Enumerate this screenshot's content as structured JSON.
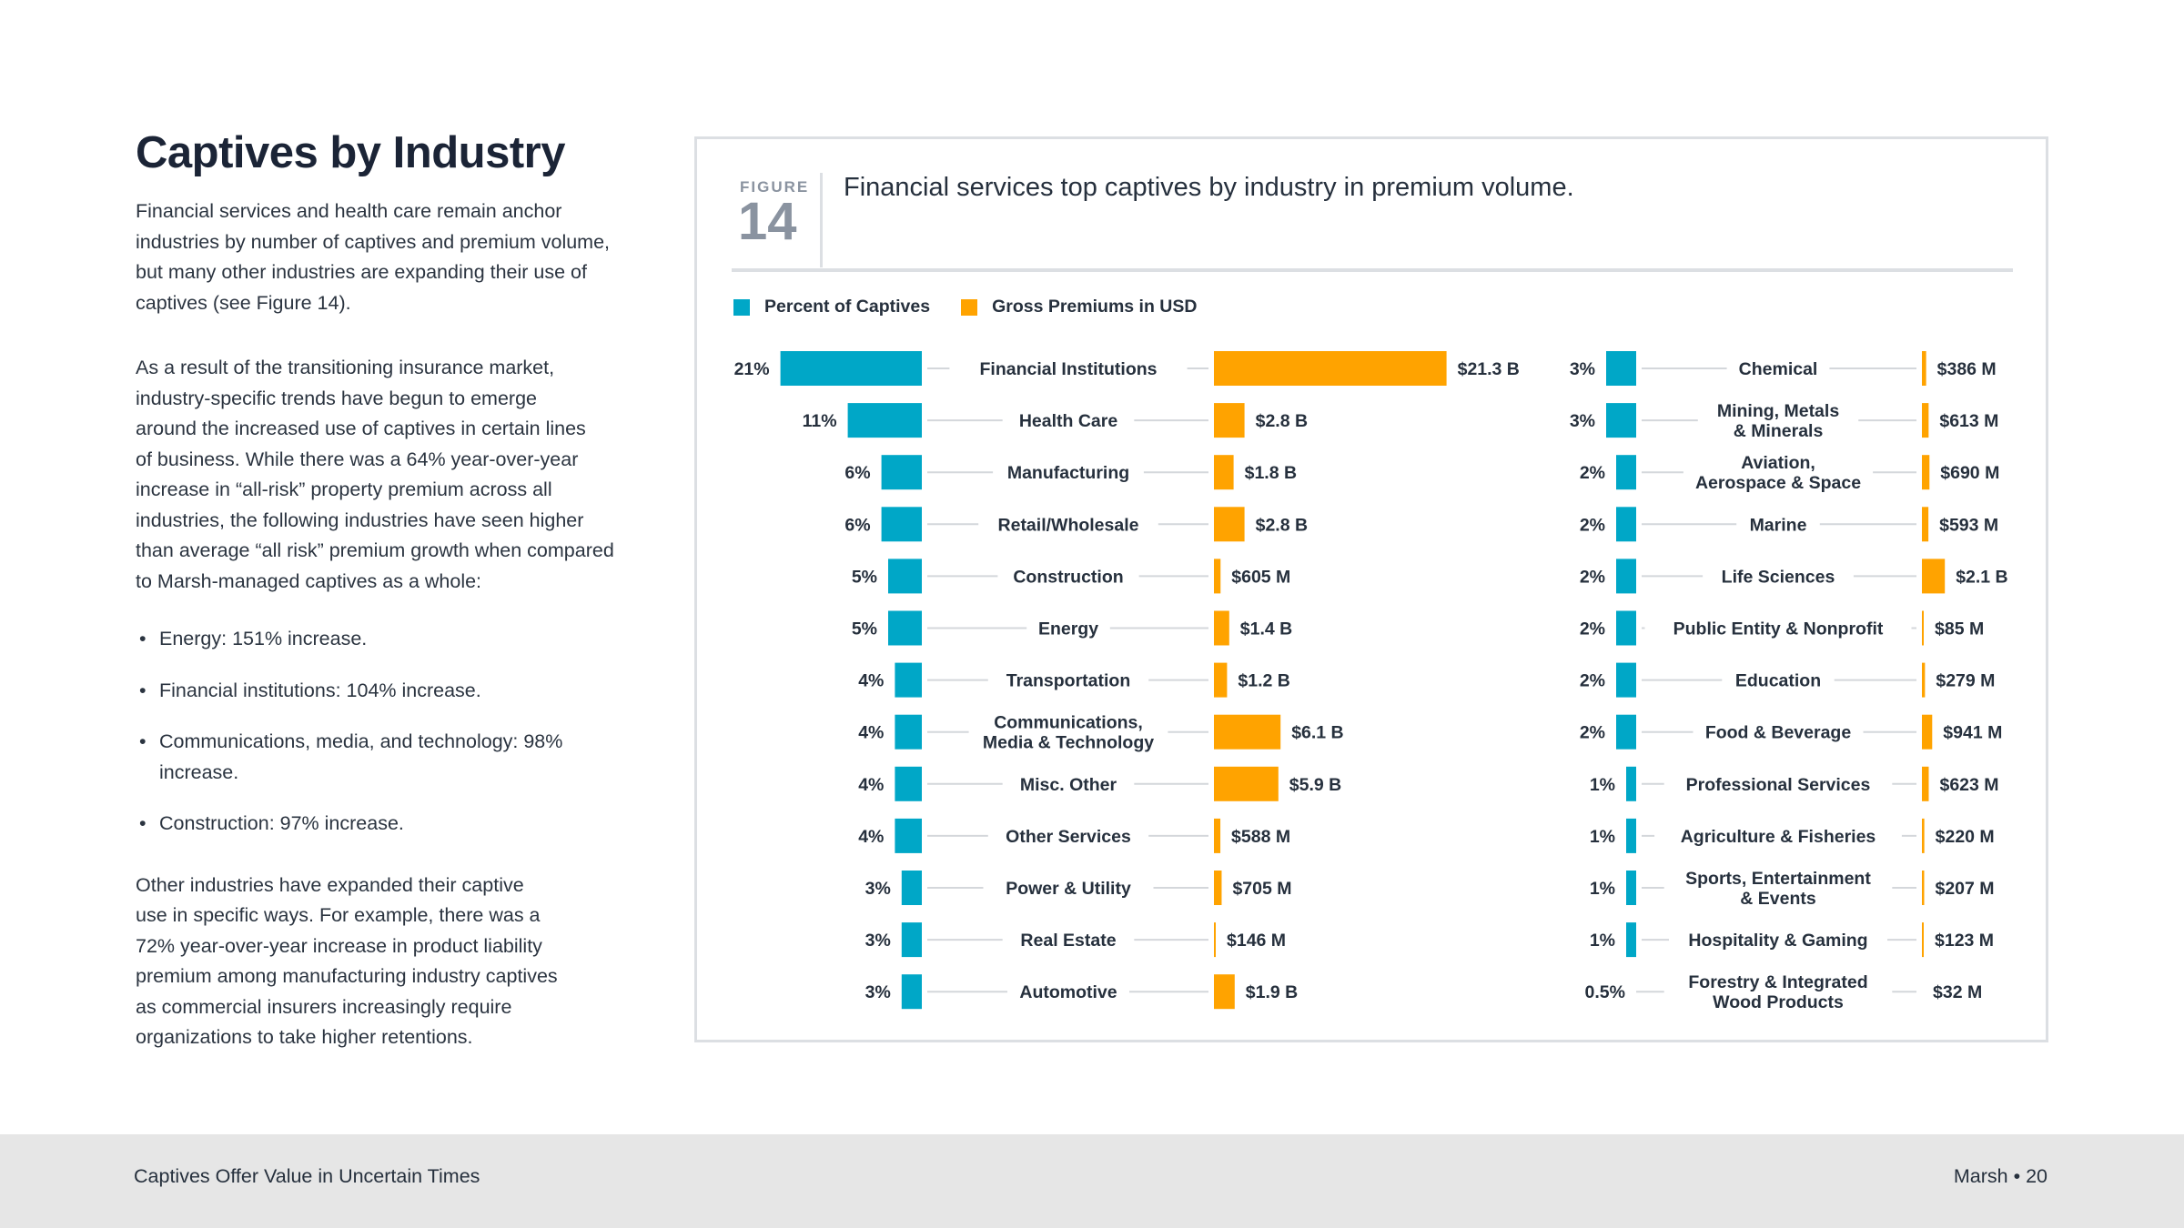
{
  "left": {
    "title": "Captives by Industry",
    "intro_lines": [
      "Financial services and health care remain anchor",
      "industries by number of captives and premium volume,",
      "but many other industries are expanding their use of",
      "captives (see Figure 14)."
    ],
    "para2_lines": [
      "As a result of the transitioning insurance market,",
      "industry-specific trends have begun to emerge",
      "around the increased use of captives in certain lines",
      "of business. While there was a 64% year-over-year",
      "increase in “all-risk” property premium across all",
      "industries, the following industries have seen higher",
      "than average “all risk” premium growth when compared",
      "to Marsh-managed captives as a whole:"
    ],
    "bullets": [
      [
        "Energy: 151% increase."
      ],
      [
        "Financial institutions: 104% increase."
      ],
      [
        "Communications, media, and technology: 98%",
        "increase."
      ],
      [
        "Construction: 97% increase."
      ]
    ],
    "para3_lines": [
      "Other industries have expanded their captive",
      "use in specific ways. For example, there was a",
      "72% year-over-year increase in product liability",
      "premium among manufacturing industry captives",
      "as commercial insurers increasingly require",
      "organizations to take higher retentions."
    ]
  },
  "figure": {
    "label": "FIGURE",
    "number": "14",
    "title": "Financial services top captives by industry in premium volume."
  },
  "legend": {
    "percent_label": "Percent of Captives",
    "premium_label": "Gross Premiums in USD"
  },
  "colors": {
    "percent": "#00a7c7",
    "premium": "#ffa300",
    "connector": "#d4d7db",
    "text": "#26303d"
  },
  "chart_data": {
    "type": "bar",
    "title": "Financial services top captives by industry in premium volume.",
    "series": [
      {
        "name": "Percent of Captives",
        "unit": "%"
      },
      {
        "name": "Gross Premiums in USD",
        "unit": "USD billions"
      }
    ],
    "columns": [
      {
        "rows": [
          {
            "lines": [
              "Financial Institutions"
            ],
            "pct": 21,
            "pct_label": "21%",
            "premium_b": 21.3,
            "premium_label": "$21.3 B"
          },
          {
            "lines": [
              "Health Care"
            ],
            "pct": 11,
            "pct_label": "11%",
            "premium_b": 2.8,
            "premium_label": "$2.8 B"
          },
          {
            "lines": [
              "Manufacturing"
            ],
            "pct": 6,
            "pct_label": "6%",
            "premium_b": 1.8,
            "premium_label": "$1.8 B"
          },
          {
            "lines": [
              "Retail/Wholesale"
            ],
            "pct": 6,
            "pct_label": "6%",
            "premium_b": 2.8,
            "premium_label": "$2.8 B"
          },
          {
            "lines": [
              "Construction"
            ],
            "pct": 5,
            "pct_label": "5%",
            "premium_b": 0.605,
            "premium_label": "$605 M"
          },
          {
            "lines": [
              "Energy"
            ],
            "pct": 5,
            "pct_label": "5%",
            "premium_b": 1.4,
            "premium_label": "$1.4 B"
          },
          {
            "lines": [
              "Transportation"
            ],
            "pct": 4,
            "pct_label": "4%",
            "premium_b": 1.2,
            "premium_label": "$1.2 B"
          },
          {
            "lines": [
              "Communications,",
              "Media & Technology"
            ],
            "pct": 4,
            "pct_label": "4%",
            "premium_b": 6.1,
            "premium_label": "$6.1 B"
          },
          {
            "lines": [
              "Misc. Other"
            ],
            "pct": 4,
            "pct_label": "4%",
            "premium_b": 5.9,
            "premium_label": "$5.9 B"
          },
          {
            "lines": [
              "Other Services"
            ],
            "pct": 4,
            "pct_label": "4%",
            "premium_b": 0.588,
            "premium_label": "$588 M"
          },
          {
            "lines": [
              "Power & Utility"
            ],
            "pct": 3,
            "pct_label": "3%",
            "premium_b": 0.705,
            "premium_label": "$705 M"
          },
          {
            "lines": [
              "Real Estate"
            ],
            "pct": 3,
            "pct_label": "3%",
            "premium_b": 0.146,
            "premium_label": "$146 M"
          },
          {
            "lines": [
              "Automotive"
            ],
            "pct": 3,
            "pct_label": "3%",
            "premium_b": 1.9,
            "premium_label": "$1.9 B"
          }
        ]
      },
      {
        "rows": [
          {
            "lines": [
              "Chemical"
            ],
            "pct": 3,
            "pct_label": "3%",
            "premium_b": 0.386,
            "premium_label": "$386 M"
          },
          {
            "lines": [
              "Mining, Metals",
              "& Minerals"
            ],
            "pct": 3,
            "pct_label": "3%",
            "premium_b": 0.613,
            "premium_label": "$613 M"
          },
          {
            "lines": [
              "Aviation,",
              "Aerospace & Space"
            ],
            "pct": 2,
            "pct_label": "2%",
            "premium_b": 0.69,
            "premium_label": "$690 M"
          },
          {
            "lines": [
              "Marine"
            ],
            "pct": 2,
            "pct_label": "2%",
            "premium_b": 0.593,
            "premium_label": "$593 M"
          },
          {
            "lines": [
              "Life Sciences"
            ],
            "pct": 2,
            "pct_label": "2%",
            "premium_b": 2.1,
            "premium_label": "$2.1 B"
          },
          {
            "lines": [
              "Public Entity & Nonprofit"
            ],
            "pct": 2,
            "pct_label": "2%",
            "premium_b": 0.085,
            "premium_label": "$85 M"
          },
          {
            "lines": [
              "Education"
            ],
            "pct": 2,
            "pct_label": "2%",
            "premium_b": 0.279,
            "premium_label": "$279 M"
          },
          {
            "lines": [
              "Food & Beverage"
            ],
            "pct": 2,
            "pct_label": "2%",
            "premium_b": 0.941,
            "premium_label": "$941 M"
          },
          {
            "lines": [
              "Professional Services"
            ],
            "pct": 1,
            "pct_label": "1%",
            "premium_b": 0.623,
            "premium_label": "$623 M"
          },
          {
            "lines": [
              "Agriculture & Fisheries"
            ],
            "pct": 1,
            "pct_label": "1%",
            "premium_b": 0.22,
            "premium_label": "$220 M"
          },
          {
            "lines": [
              "Sports, Entertainment",
              "& Events"
            ],
            "pct": 1,
            "pct_label": "1%",
            "premium_b": 0.207,
            "premium_label": "$207 M"
          },
          {
            "lines": [
              "Hospitality & Gaming"
            ],
            "pct": 1,
            "pct_label": "1%",
            "premium_b": 0.123,
            "premium_label": "$123 M"
          },
          {
            "lines": [
              "Forestry & Integrated",
              "Wood Products"
            ],
            "pct": 0.5,
            "pct_label": "0.5%",
            "premium_b": 0.032,
            "premium_label": "$32 M"
          }
        ]
      }
    ]
  },
  "footer": {
    "left": "Captives Offer Value in Uncertain Times",
    "right": "Marsh • 20"
  }
}
